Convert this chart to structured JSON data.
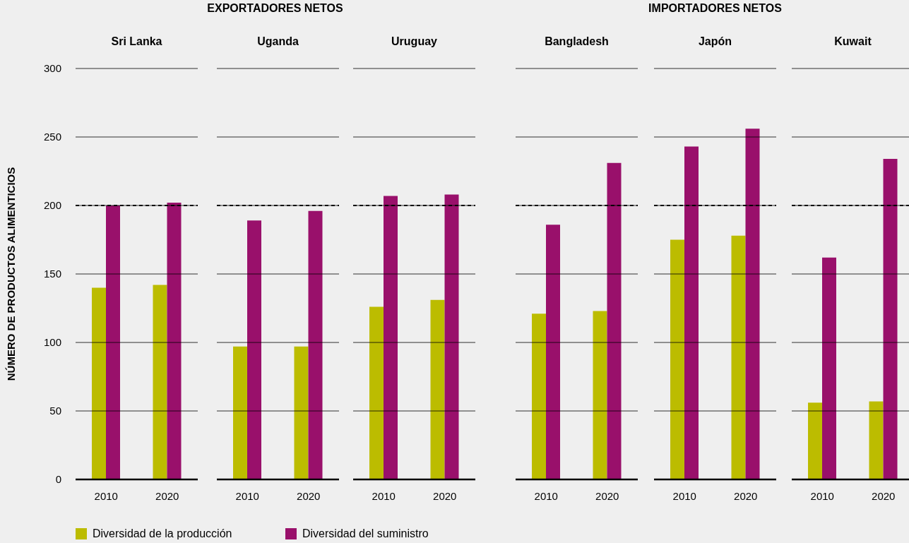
{
  "chart_data": [
    {
      "type": "bar",
      "title": "Sri Lanka",
      "annotations": [
        "EXPORTADORES NETOS"
      ],
      "ylabel": "NÚMERO DE PRODUCTOS ALIMENTICIOS",
      "categories": [
        "2010",
        "2020"
      ],
      "series": [
        {
          "name": "Diversidad de la producción",
          "color": "#bcbc00",
          "values": [
            140,
            142
          ]
        },
        {
          "name": "Diversidad del suministro",
          "color": "#99106b",
          "values": [
            200,
            202
          ]
        }
      ],
      "ylim": [
        0,
        300
      ],
      "yticks": [
        0,
        50,
        100,
        150,
        200,
        250,
        300
      ],
      "grid": "y",
      "legend": "bottom",
      "ref_lines": [
        {
          "axis": "y",
          "value": 200,
          "line_style": "dashed"
        }
      ]
    },
    {
      "type": "bar",
      "title": "Uganda",
      "categories": [
        "2010",
        "2020"
      ],
      "series": [
        {
          "color": "#bcbc00",
          "values": [
            97,
            97
          ]
        },
        {
          "color": "#99106b",
          "values": [
            189,
            196
          ]
        }
      ],
      "ylim": [
        0,
        300
      ],
      "yticks": [
        0,
        50,
        100,
        150,
        200,
        250,
        300
      ],
      "grid": "y",
      "tick_labels": "x",
      "ref_lines": [
        {
          "axis": "y",
          "value": 200,
          "line_style": "dashed"
        }
      ]
    },
    {
      "type": "bar",
      "title": "Uruguay",
      "categories": [
        "2010",
        "2020"
      ],
      "series": [
        {
          "color": "#bcbc00",
          "values": [
            126,
            131
          ]
        },
        {
          "color": "#99106b",
          "values": [
            207,
            208
          ]
        }
      ],
      "ylim": [
        0,
        300
      ],
      "yticks": [
        0,
        50,
        100,
        150,
        200,
        250,
        300
      ],
      "grid": "y",
      "tick_labels": "x",
      "ref_lines": [
        {
          "axis": "y",
          "value": 200,
          "line_style": "dashed"
        }
      ]
    },
    {
      "type": "bar",
      "title": "Bangladesh",
      "annotations": [
        "IMPORTADORES NETOS"
      ],
      "categories": [
        "2010",
        "2020"
      ],
      "series": [
        {
          "color": "#bcbc00",
          "values": [
            121,
            123
          ]
        },
        {
          "color": "#99106b",
          "values": [
            186,
            231
          ]
        }
      ],
      "ylim": [
        0,
        300
      ],
      "yticks": [
        0,
        50,
        100,
        150,
        200,
        250,
        300
      ],
      "grid": "y",
      "tick_labels": "x",
      "ref_lines": [
        {
          "axis": "y",
          "value": 200,
          "line_style": "dashed"
        }
      ]
    },
    {
      "type": "bar",
      "title": "Japón",
      "categories": [
        "2010",
        "2020"
      ],
      "series": [
        {
          "color": "#bcbc00",
          "values": [
            175,
            178
          ]
        },
        {
          "color": "#99106b",
          "values": [
            243,
            256
          ]
        }
      ],
      "ylim": [
        0,
        300
      ],
      "yticks": [
        0,
        50,
        100,
        150,
        200,
        250,
        300
      ],
      "grid": "y",
      "tick_labels": "x",
      "ref_lines": [
        {
          "axis": "y",
          "value": 200,
          "line_style": "dashed"
        }
      ]
    },
    {
      "type": "bar",
      "title": "Kuwait",
      "categories": [
        "2010",
        "2020"
      ],
      "series": [
        {
          "color": "#bcbc00",
          "values": [
            56,
            57
          ]
        },
        {
          "color": "#99106b",
          "values": [
            162,
            234
          ]
        }
      ],
      "ylim": [
        0,
        300
      ],
      "yticks": [
        0,
        50,
        100,
        150,
        200,
        250,
        300
      ],
      "grid": "y",
      "tick_labels": "x",
      "ref_lines": [
        {
          "axis": "y",
          "value": 200,
          "line_style": "dashed"
        }
      ]
    }
  ]
}
